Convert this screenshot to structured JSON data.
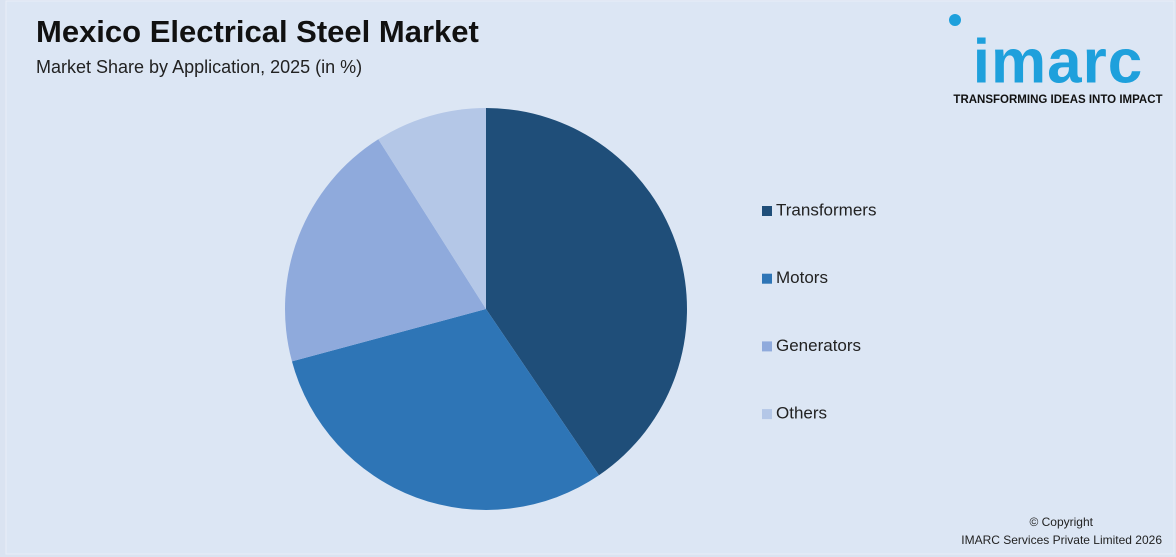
{
  "chart_data": {
    "type": "pie",
    "title": "Mexico Electrical Steel Market",
    "subtitle": "Market Share by Application, 2025 (in %)",
    "categories": [
      "Transformers",
      "Motors",
      "Generators",
      "Others"
    ],
    "values": [
      40.5,
      30.3,
      20.2,
      9
    ],
    "colors": [
      "#1f4e79",
      "#2e75b6",
      "#8faadc",
      "#b4c7e7"
    ],
    "legend": "right"
  },
  "logo": {
    "name": "imarc",
    "tagline": "TRANSFORMING IDEAS INTO IMPACT"
  },
  "footer": {
    "copyright": "© Copyright",
    "company": "IMARC Services Private Limited 2026"
  }
}
